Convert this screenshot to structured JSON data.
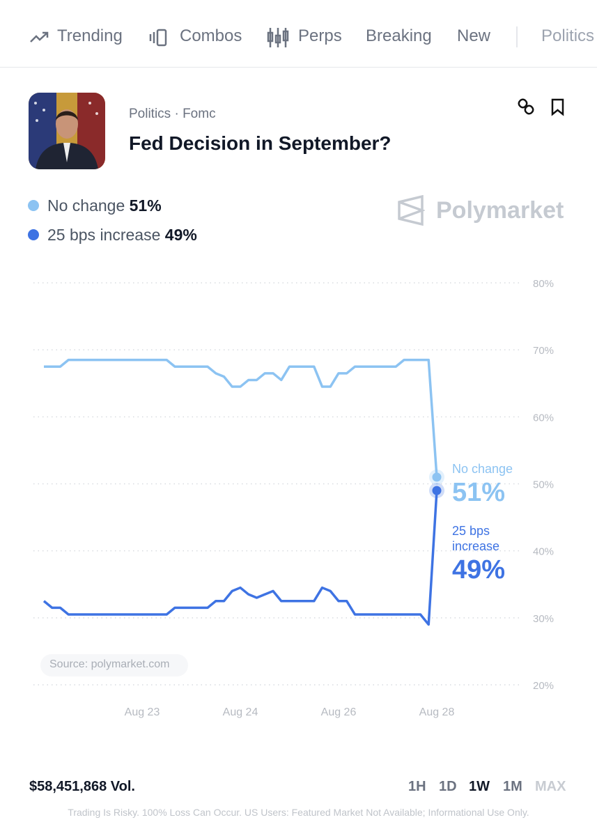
{
  "nav": {
    "items": [
      "Trending",
      "Combos",
      "Perps",
      "Breaking",
      "New",
      "Politics"
    ]
  },
  "market": {
    "breadcrumb": "Politics · Fomc",
    "title": "Fed Decision in September?"
  },
  "watermark": "Polymarket",
  "source": "Source: polymarket.com",
  "chart_data": {
    "type": "line",
    "categories": [
      null,
      null,
      null,
      null,
      null,
      null,
      null,
      null,
      null,
      null,
      null,
      null,
      "Aug 23",
      null,
      null,
      null,
      null,
      null,
      null,
      null,
      null,
      null,
      null,
      null,
      "Aug 24",
      null,
      null,
      null,
      null,
      null,
      null,
      null,
      null,
      null,
      null,
      null,
      "Aug 26",
      null,
      null,
      null,
      null,
      null,
      null,
      null,
      null,
      null,
      null,
      null,
      "Aug 28"
    ],
    "series": [
      {
        "name": "No change",
        "color": "#8cc3f2",
        "values": [
          67.5,
          67.5,
          67.5,
          68.5,
          68.5,
          68.5,
          68.5,
          68.5,
          68.5,
          68.5,
          68.5,
          68.5,
          68.5,
          68.5,
          68.5,
          68.5,
          67.5,
          67.5,
          67.5,
          67.5,
          67.5,
          66.5,
          66,
          64.5,
          64.5,
          65.5,
          65.5,
          66.5,
          66.5,
          65.5,
          67.5,
          67.5,
          67.5,
          67.5,
          64.5,
          64.5,
          66.5,
          66.5,
          67.5,
          67.5,
          67.5,
          67.5,
          67.5,
          67.5,
          68.5,
          68.5,
          68.5,
          68.5,
          51
        ],
        "value_labels": [
          null,
          null,
          null,
          null,
          null,
          null,
          null,
          null,
          null,
          null,
          null,
          null,
          null,
          null,
          null,
          null,
          null,
          null,
          null,
          null,
          null,
          null,
          null,
          null,
          null,
          null,
          null,
          null,
          null,
          null,
          null,
          null,
          null,
          null,
          null,
          null,
          null,
          null,
          null,
          null,
          null,
          null,
          null,
          null,
          null,
          null,
          null,
          null,
          "51%"
        ]
      },
      {
        "name": "25 bps increase",
        "color": "#3e73e3",
        "values": [
          32.5,
          31.5,
          31.5,
          30.5,
          30.5,
          30.5,
          30.5,
          30.5,
          30.5,
          30.5,
          30.5,
          30.5,
          30.5,
          30.5,
          30.5,
          30.5,
          31.5,
          31.5,
          31.5,
          31.5,
          31.5,
          32.5,
          32.5,
          34,
          34.5,
          33.5,
          33,
          33.5,
          34,
          32.5,
          32.5,
          32.5,
          32.5,
          32.5,
          34.5,
          34,
          32.5,
          32.5,
          30.5,
          30.5,
          30.5,
          30.5,
          30.5,
          30.5,
          30.5,
          30.5,
          30.5,
          29,
          49
        ],
        "value_labels": [
          null,
          null,
          null,
          null,
          null,
          null,
          null,
          null,
          null,
          null,
          null,
          null,
          null,
          null,
          null,
          null,
          null,
          null,
          null,
          null,
          null,
          null,
          null,
          null,
          null,
          null,
          null,
          null,
          null,
          null,
          null,
          null,
          null,
          null,
          null,
          null,
          null,
          null,
          null,
          null,
          null,
          null,
          null,
          null,
          null,
          null,
          null,
          null,
          "49%"
        ]
      }
    ],
    "ylim": [
      20,
      80
    ],
    "yticks": [
      {
        "value": 20,
        "label": "20%"
      },
      {
        "value": 30,
        "label": "30%"
      },
      {
        "value": 40,
        "label": "40%"
      },
      {
        "value": 50,
        "label": "50%"
      },
      {
        "value": 60,
        "label": "60%"
      },
      {
        "value": 70,
        "label": "70%"
      },
      {
        "value": 80,
        "label": "80%"
      }
    ],
    "grid": true
  },
  "footer": {
    "volume": "$58,451,868 Vol.",
    "timeframes": [
      "1H",
      "1D",
      "1W",
      "1M",
      "MAX"
    ],
    "active_timeframe": "1W",
    "disclaimer": "Trading Is Risky. 100% Loss Can Occur. US Users: Featured Market Not Available; Informational Use Only."
  }
}
